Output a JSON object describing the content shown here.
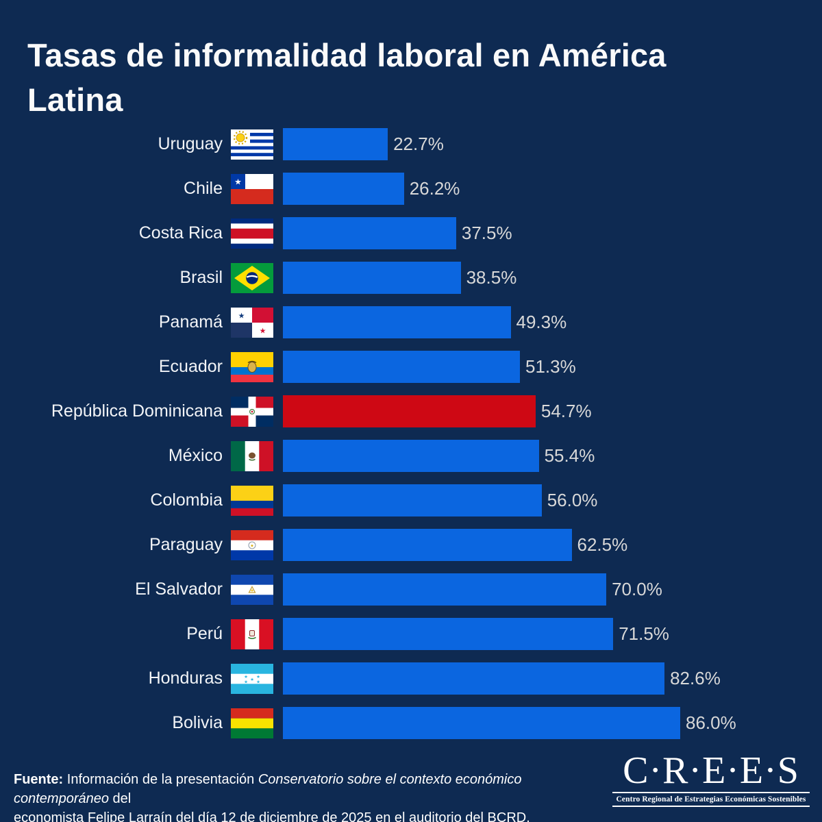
{
  "title": {
    "text": "Tasas de informalidad laboral en América Latina",
    "line1": "Tasas de informalidad laboral en América",
    "line2": "Latina"
  },
  "chart_data": {
    "type": "bar",
    "orientation": "horizontal",
    "title": "Tasas de informalidad laboral en América Latina",
    "value_suffix": "%",
    "xlim": [
      0,
      100
    ],
    "grid": false,
    "legend": false,
    "categories": [
      "Uruguay",
      "Chile",
      "Costa Rica",
      "Brasil",
      "Panamá",
      "Ecuador",
      "República Dominicana",
      "México",
      "Colombia",
      "Paraguay",
      "El Salvador",
      "Perú",
      "Honduras",
      "Bolivia"
    ],
    "values": [
      22.7,
      26.2,
      37.5,
      38.5,
      49.3,
      51.3,
      54.7,
      55.4,
      56.0,
      62.5,
      70.0,
      71.5,
      82.6,
      86.0
    ],
    "data_labels": [
      "22.7%",
      "26.2%",
      "37.5%",
      "38.5%",
      "49.3%",
      "51.3%",
      "54.7%",
      "55.4%",
      "56.0%",
      "62.5%",
      "70.0%",
      "71.5%",
      "82.6%",
      "86.0%"
    ],
    "flag_keys": [
      "uruguay",
      "chile",
      "costa_rica",
      "brasil",
      "panama",
      "ecuador",
      "dominicana",
      "mexico",
      "colombia",
      "paraguay",
      "el_salvador",
      "peru",
      "honduras",
      "bolivia"
    ],
    "flag_icons": [
      "uruguay-flag-icon",
      "chile-flag-icon",
      "costa-rica-flag-icon",
      "brasil-flag-icon",
      "panama-flag-icon",
      "ecuador-flag-icon",
      "republica-dominicana-flag-icon",
      "mexico-flag-icon",
      "colombia-flag-icon",
      "paraguay-flag-icon",
      "el-salvador-flag-icon",
      "peru-flag-icon",
      "honduras-flag-icon",
      "bolivia-flag-icon"
    ],
    "highlight_index": 6,
    "highlighted_category": "República Dominicana"
  },
  "footer": {
    "line1_bold": "Fuente:",
    "line1_text": " Información de la presentación ",
    "line1_italic": "Conservatorio sobre el contexto económico contemporáneo",
    "line1_end": " del",
    "line2": "economista Felipe Larraín del día 12 de diciembre de 2025 en el auditorio del BCRD."
  },
  "logo": {
    "wordmark": "C·R·E·E·S",
    "tagline": "Centro Regional de Estrategias Económicas Sostenibles"
  },
  "colors": {
    "background": "#0e2a52",
    "bar_default": "#0b66e0",
    "bar_highlight": "#ce0814",
    "label_text": "#f2f4f7",
    "value_text": "#d8d8d8",
    "title_text": "#fafafa",
    "footer_text": "#ffffff",
    "logo_text": "#ffffff"
  }
}
